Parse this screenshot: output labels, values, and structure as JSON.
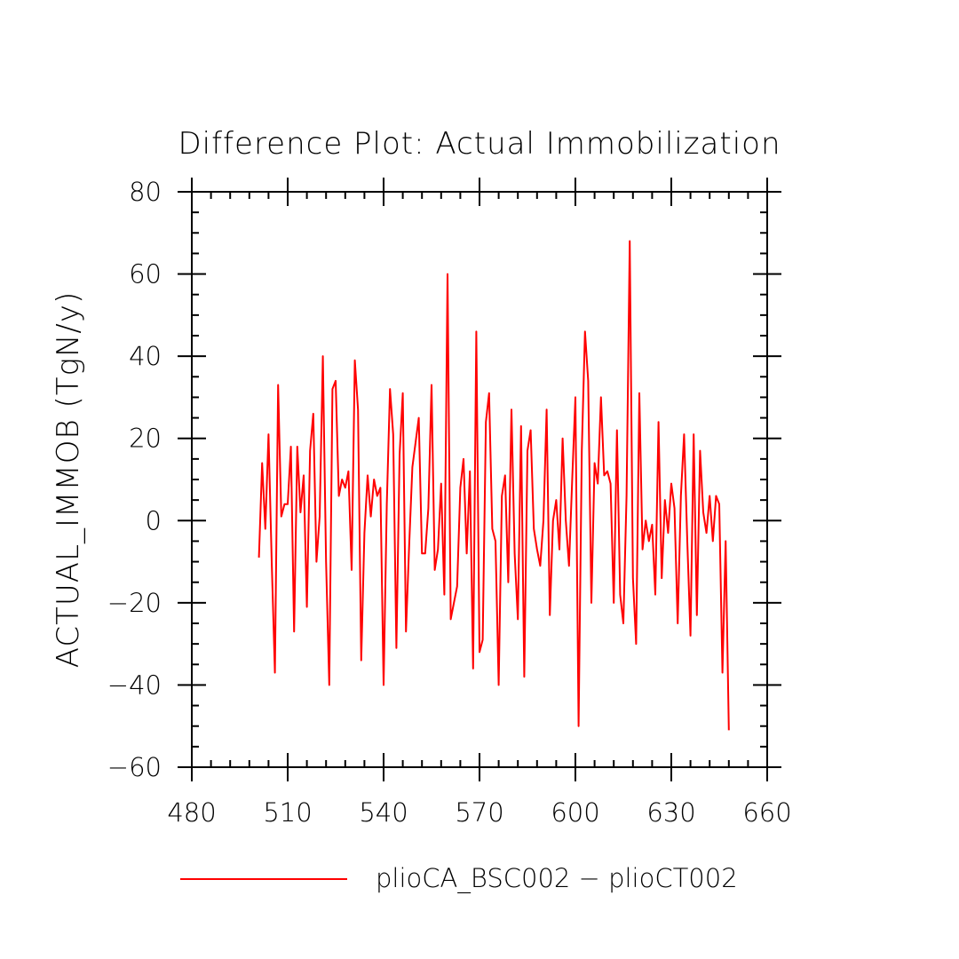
{
  "chart_data": {
    "type": "line",
    "title": "Difference Plot: Actual Immobilization",
    "xlabel": "",
    "ylabel": "ACTUAL_IMMOB  (TgN/y)",
    "xlim": [
      480,
      660
    ],
    "ylim": [
      -60,
      80
    ],
    "x_ticks": [
      480,
      510,
      540,
      570,
      600,
      630,
      660
    ],
    "y_ticks": [
      -60,
      -40,
      -20,
      0,
      20,
      40,
      60,
      80
    ],
    "x_tick_labels": [
      "480",
      "510",
      "540",
      "570",
      "600",
      "630",
      "660"
    ],
    "y_tick_labels": [
      "−60",
      "−40",
      "−20",
      "0",
      "20",
      "40",
      "60",
      "80"
    ],
    "grid": false,
    "legend_position": "bottom",
    "x_start": 501,
    "series": [
      {
        "name": "plioCA_BSC002 − plioCT002",
        "color": "#ff0000",
        "values": [
          -9,
          14,
          -2,
          21,
          -10,
          -37,
          33,
          1,
          4,
          4,
          18,
          -27,
          18,
          2,
          11,
          -21,
          17,
          26,
          -10,
          1,
          40,
          -10,
          -40,
          32,
          34,
          6,
          10,
          8,
          12,
          -12,
          39,
          27,
          -34,
          -3,
          11,
          1,
          10,
          6,
          8,
          -40,
          4,
          32,
          21,
          -31,
          16,
          31,
          -27,
          -6,
          13,
          19,
          25,
          -8,
          -8,
          3,
          33,
          -12,
          -7,
          9,
          -18,
          60,
          -24,
          -20,
          -16,
          8,
          15,
          -8,
          12,
          -36,
          46,
          -32,
          -29,
          24,
          31,
          -2,
          -5,
          -40,
          6,
          11,
          -15,
          27,
          -8,
          -24,
          23,
          -38,
          17,
          22,
          -2,
          -7,
          -11,
          0,
          27,
          -23,
          0,
          5,
          -7,
          20,
          0,
          -11,
          10,
          30,
          -50,
          17,
          46,
          34,
          -20,
          14,
          9,
          30,
          11,
          12,
          9,
          -20,
          22,
          -18,
          -25,
          6,
          68,
          -14,
          -30,
          31,
          -7,
          0,
          -5,
          -1,
          -18,
          24,
          -14,
          5,
          -3,
          9,
          3,
          -25,
          6,
          21,
          -5,
          -28,
          21,
          -23,
          17,
          2,
          -3,
          6,
          -5,
          6,
          4,
          -37,
          -5,
          -51
        ]
      }
    ]
  }
}
